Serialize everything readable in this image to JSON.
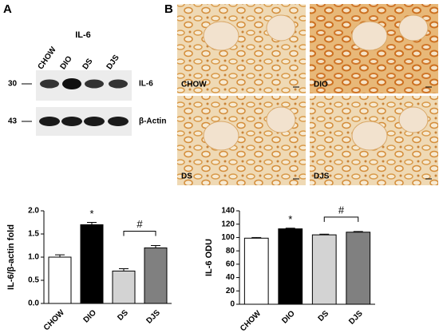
{
  "panels": {
    "a": "A",
    "b": "B"
  },
  "blot": {
    "title": "IL-6",
    "lanes": [
      "CHOW",
      "DIO",
      "DS",
      "DJS"
    ],
    "rows": [
      {
        "marker": "30",
        "label": "IL-6"
      },
      {
        "marker": "43",
        "label": "β-Actin"
      }
    ]
  },
  "histology": {
    "labels": [
      "CHOW",
      "DIO",
      "DS",
      "DJS"
    ]
  },
  "chart_data": [
    {
      "type": "bar",
      "ylabel": "IL-6/β-actin fold",
      "categories": [
        "CHOW",
        "DIO",
        "DS",
        "DJS"
      ],
      "values": [
        1.0,
        1.7,
        0.7,
        1.2
      ],
      "errors": [
        0.05,
        0.05,
        0.05,
        0.05
      ],
      "colors": [
        "#ffffff",
        "#000000",
        "#d3d3d3",
        "#808080"
      ],
      "ylim": [
        0,
        2.0
      ],
      "yticks": [
        {
          "value": 0,
          "label": "0.0"
        },
        {
          "value": 0.5,
          "label": "0.5"
        },
        {
          "value": 1.0,
          "label": "1.0"
        },
        {
          "value": 1.5,
          "label": "1.5"
        },
        {
          "value": 2.0,
          "label": "2.0"
        }
      ],
      "annotations": [
        "*",
        "#"
      ]
    },
    {
      "type": "bar",
      "ylabel": "IL-6 ODU",
      "categories": [
        "CHOW",
        "DIO",
        "DS",
        "DJS"
      ],
      "values": [
        99,
        113,
        104,
        108
      ],
      "errors": [
        1,
        1,
        1,
        1
      ],
      "colors": [
        "#ffffff",
        "#000000",
        "#d3d3d3",
        "#808080"
      ],
      "ylim": [
        0,
        140
      ],
      "yticks": [
        0,
        20,
        40,
        60,
        80,
        100,
        120,
        140
      ],
      "annotations": [
        "*",
        "#"
      ]
    }
  ]
}
